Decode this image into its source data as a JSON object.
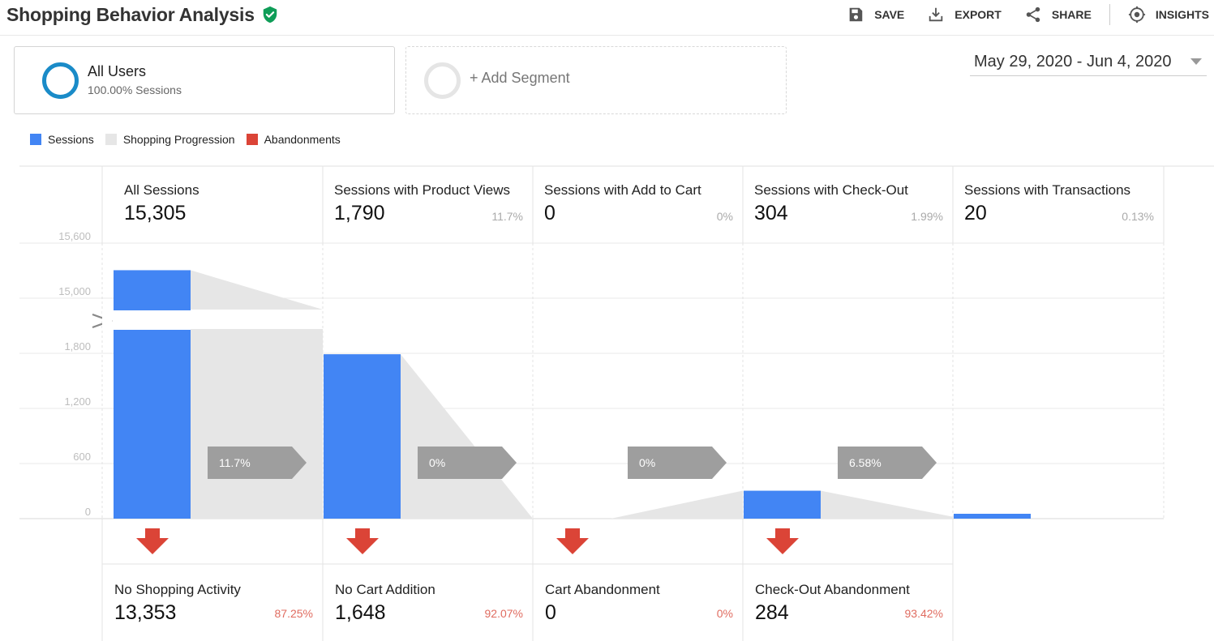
{
  "header": {
    "title": "Shopping Behavior Analysis",
    "actions": [
      {
        "label": "SAVE",
        "icon": "save-icon"
      },
      {
        "label": "EXPORT",
        "icon": "export-icon"
      },
      {
        "label": "SHARE",
        "icon": "share-icon"
      },
      {
        "label": "INSIGHTS",
        "icon": "insights-icon"
      }
    ]
  },
  "segments": {
    "active": {
      "name": "All Users",
      "sub": "100.00% Sessions"
    },
    "add": {
      "label": "+ Add Segment"
    }
  },
  "date_range": "May 29, 2020 - Jun 4, 2020",
  "legend": [
    {
      "label": "Sessions",
      "color": "#4285f4"
    },
    {
      "label": "Shopping Progression",
      "color": "#e6e6e6"
    },
    {
      "label": "Abandonments",
      "color": "#db4437"
    }
  ],
  "chart_data": {
    "type": "bar",
    "y_ticks": [
      "15,600",
      "15,000",
      "1,800",
      "1,200",
      "600",
      "0"
    ],
    "axis_break": {
      "lower_range": [
        0,
        2400
      ],
      "upper_range": [
        14800,
        15600
      ]
    },
    "stages": [
      {
        "label": "All Sessions",
        "value": "15,305",
        "num": 15305,
        "pct": ""
      },
      {
        "label": "Sessions with Product Views",
        "value": "1,790",
        "num": 1790,
        "pct": "11.7%"
      },
      {
        "label": "Sessions with Add to Cart",
        "value": "0",
        "num": 0,
        "pct": "0%"
      },
      {
        "label": "Sessions with Check-Out",
        "value": "304",
        "num": 304,
        "pct": "1.99%"
      },
      {
        "label": "Sessions with Transactions",
        "value": "20",
        "num": 20,
        "pct": "0.13%"
      }
    ],
    "progression": [
      "11.7%",
      "0%",
      "0%",
      "6.58%"
    ],
    "abandonments": [
      {
        "label": "No Shopping Activity",
        "value": "13,353",
        "pct": "87.25%"
      },
      {
        "label": "No Cart Addition",
        "value": "1,648",
        "pct": "92.07%"
      },
      {
        "label": "Cart Abandonment",
        "value": "0",
        "pct": "0%"
      },
      {
        "label": "Check-Out Abandonment",
        "value": "284",
        "pct": "93.42%"
      }
    ],
    "colors": {
      "sessions": "#4285f4",
      "progression": "#e6e6e6",
      "abandonment": "#db4437",
      "progression_arrow": "#9e9e9e"
    }
  }
}
